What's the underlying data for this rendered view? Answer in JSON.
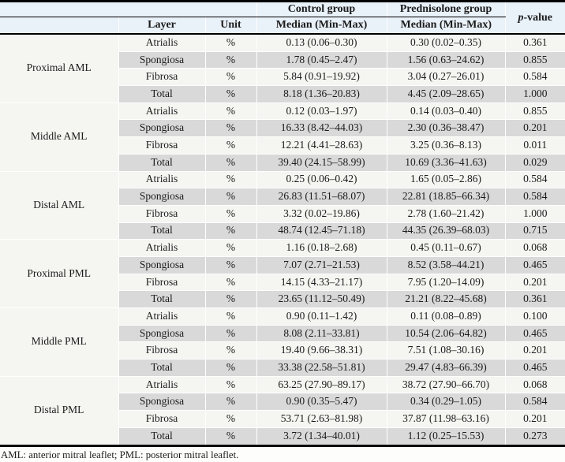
{
  "table": {
    "header": {
      "groups": [
        {
          "label": "Control group",
          "sub": "Median (Min-Max)"
        },
        {
          "label": "Prednisolone group",
          "sub": "Median (Min-Max)"
        }
      ],
      "layer_label": "Layer",
      "unit_label": "Unit",
      "p_value": {
        "italic": "p",
        "rest": "-value"
      }
    },
    "blocks": [
      {
        "region": "Proximal AML",
        "rows": [
          {
            "layer": "Atrialis",
            "unit": "%",
            "control": "0.13 (0.06–0.30)",
            "prednisolone": "0.30 (0.02–0.35)",
            "p": "0.361"
          },
          {
            "layer": "Spongiosa",
            "unit": "%",
            "control": "1.78 (0.45–2.47)",
            "prednisolone": "1.56 (0.63–24.62)",
            "p": "0.855"
          },
          {
            "layer": "Fibrosa",
            "unit": "%",
            "control": "5.84 (0.91–19.92)",
            "prednisolone": "3.04 (0.27–26.01)",
            "p": "0.584"
          },
          {
            "layer": "Total",
            "unit": "%",
            "control": "8.18 (1.36–20.83)",
            "prednisolone": "4.45 (2.09–28.65)",
            "p": "1.000"
          }
        ]
      },
      {
        "region": "Middle AML",
        "rows": [
          {
            "layer": "Atrialis",
            "unit": "%",
            "control": "0.12 (0.03–1.97)",
            "prednisolone": "0.14 (0.03–0.40)",
            "p": "0.855"
          },
          {
            "layer": "Spongiosa",
            "unit": "%",
            "control": "16.33 (8.42–44.03)",
            "prednisolone": "2.30 (0.36–38.47)",
            "p": "0.201"
          },
          {
            "layer": "Fibrosa",
            "unit": "%",
            "control": "12.21 (4.41–28.63)",
            "prednisolone": "3.25 (0.36–8.13)",
            "p": "0.011"
          },
          {
            "layer": "Total",
            "unit": "%",
            "control": "39.40 (24.15–58.99)",
            "prednisolone": "10.69 (3.36–41.63)",
            "p": "0.029"
          }
        ]
      },
      {
        "region": "Distal AML",
        "rows": [
          {
            "layer": "Atrialis",
            "unit": "%",
            "control": "0.25 (0.06–0.42)",
            "prednisolone": "1.65 (0.05–2.86)",
            "p": "0.584"
          },
          {
            "layer": "Spongiosa",
            "unit": "%",
            "control": "26.83 (11.51–68.07)",
            "prednisolone": "22.81 (18.85–66.34)",
            "p": "0.584"
          },
          {
            "layer": "Fibrosa",
            "unit": "%",
            "control": "3.32 (0.02–19.86)",
            "prednisolone": "2.78 (1.60–21.42)",
            "p": "1.000"
          },
          {
            "layer": "Total",
            "unit": "%",
            "control": "48.74 (12.45–71.18)",
            "prednisolone": "44.35 (26.39–68.03)",
            "p": "0.715"
          }
        ]
      },
      {
        "region": "Proximal PML",
        "rows": [
          {
            "layer": "Atrialis",
            "unit": "%",
            "control": "1.16 (0.18–2.68)",
            "prednisolone": "0.45 (0.11–0.67)",
            "p": "0.068"
          },
          {
            "layer": "Spongiosa",
            "unit": "%",
            "control": "7.07 (2.71–21.53)",
            "prednisolone": "8.52 (3.58–44.21)",
            "p": "0.465"
          },
          {
            "layer": "Fibrosa",
            "unit": "%",
            "control": "14.15 (4.33–21.17)",
            "prednisolone": "7.95 (1.20–14.09)",
            "p": "0.201"
          },
          {
            "layer": "Total",
            "unit": "%",
            "control": "23.65 (11.12–50.49)",
            "prednisolone": "21.21 (8.22–45.68)",
            "p": "0.361"
          }
        ]
      },
      {
        "region": "Middle PML",
        "rows": [
          {
            "layer": "Atrialis",
            "unit": "%",
            "control": "0.90 (0.11–1.42)",
            "prednisolone": "0.11 (0.08–0.89)",
            "p": "0.100"
          },
          {
            "layer": "Spongiosa",
            "unit": "%",
            "control": "8.08 (2.11–33.81)",
            "prednisolone": "10.54 (2.06–64.82)",
            "p": "0.465"
          },
          {
            "layer": "Fibrosa",
            "unit": "%",
            "control": "19.40 (9.66–38.31)",
            "prednisolone": "7.51 (1.08–30.16)",
            "p": "0.201"
          },
          {
            "layer": "Total",
            "unit": "%",
            "control": "33.38 (22.58–51.81)",
            "prednisolone": "29.47 (4.83–66.39)",
            "p": "0.465"
          }
        ]
      },
      {
        "region": "Distal PML",
        "rows": [
          {
            "layer": "Atrialis",
            "unit": "%",
            "control": "63.25 (27.90–89.17)",
            "prednisolone": "38.72 (27.90–66.70)",
            "p": "0.068"
          },
          {
            "layer": "Spongiosa",
            "unit": "%",
            "control": "0.90 (0.35–5.47)",
            "prednisolone": "0.34 (0.29–1.05)",
            "p": "0.584"
          },
          {
            "layer": "Fibrosa",
            "unit": "%",
            "control": "53.71 (2.63–81.98)",
            "prednisolone": "37.87 (11.98–63.16)",
            "p": "0.201"
          },
          {
            "layer": "Total",
            "unit": "%",
            "control": "3.72 (1.34–40.01)",
            "prednisolone": "1.12 (0.25–15.53)",
            "p": "0.273"
          }
        ]
      }
    ],
    "footnote": "AML: anterior mitral leaflet; PML: posterior mitral leaflet."
  },
  "colors": {
    "header_bg": "#e9f1f9",
    "row_light": "#f5f5f2",
    "row_gray": "#d9d9d9",
    "border": "#000000"
  }
}
